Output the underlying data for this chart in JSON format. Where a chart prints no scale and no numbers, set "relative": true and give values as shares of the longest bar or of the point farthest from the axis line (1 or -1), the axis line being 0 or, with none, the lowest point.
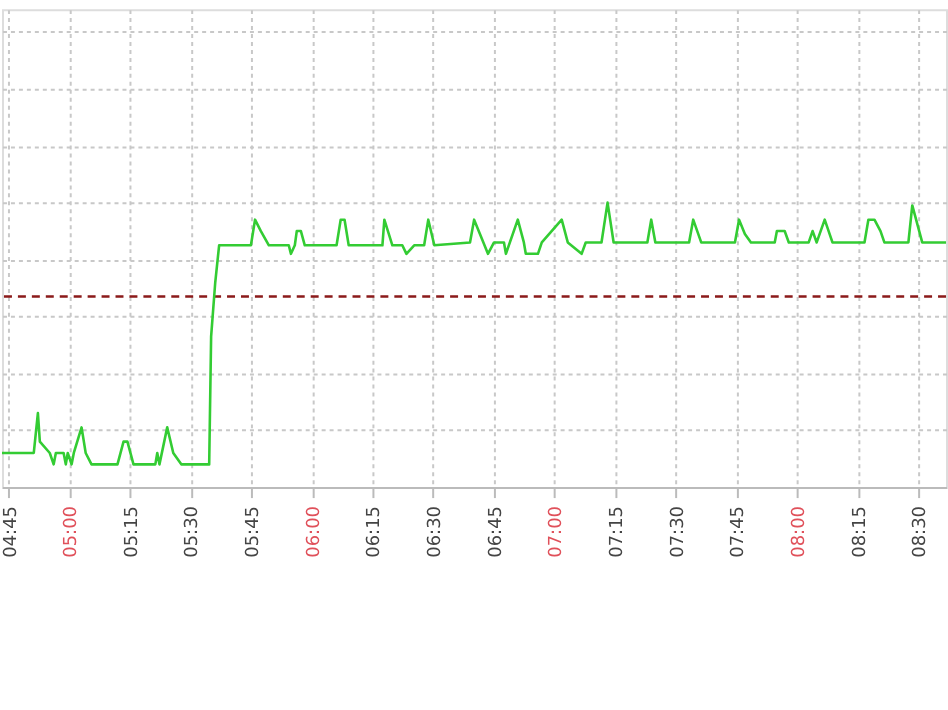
{
  "chart_data": {
    "type": "line",
    "relative": true,
    "grid": true,
    "line_style": "solid",
    "marker": "none",
    "xlim": [
      4.723,
      8.614
    ],
    "xticks": [
      {
        "value": 4.75,
        "label": "04:45"
      },
      {
        "value": 5.0,
        "label": "05:00"
      },
      {
        "value": 5.25,
        "label": "05:15"
      },
      {
        "value": 5.5,
        "label": "05:30"
      },
      {
        "value": 5.75,
        "label": "05:45"
      },
      {
        "value": 6.0,
        "label": "06:00"
      },
      {
        "value": 6.25,
        "label": "06:15"
      },
      {
        "value": 6.5,
        "label": "06:30"
      },
      {
        "value": 6.75,
        "label": "06:45"
      },
      {
        "value": 7.0,
        "label": "07:00"
      },
      {
        "value": 7.25,
        "label": "07:15"
      },
      {
        "value": 7.5,
        "label": "07:30"
      },
      {
        "value": 7.75,
        "label": "07:45"
      },
      {
        "value": 8.0,
        "label": "08:00"
      },
      {
        "value": 8.25,
        "label": "08:15"
      },
      {
        "value": 8.5,
        "label": "08:30"
      }
    ],
    "ref_lines": [
      {
        "axis": "y",
        "value": 0.67,
        "color": "#8b1a1a",
        "line_style": "dashed"
      }
    ],
    "series": [
      {
        "color": "#33cc33",
        "x": [
          4.723,
          4.854,
          4.871,
          4.879,
          4.92,
          4.936,
          4.945,
          4.977,
          4.986,
          4.994,
          5.01,
          5.019,
          5.051,
          5.068,
          5.092,
          5.199,
          5.224,
          5.24,
          5.265,
          5.355,
          5.363,
          5.372,
          5.404,
          5.429,
          5.462,
          5.577,
          5.585,
          5.602,
          5.618,
          5.749,
          5.766,
          5.79,
          5.823,
          5.905,
          5.914,
          5.93,
          5.938,
          5.955,
          5.971,
          6.102,
          6.119,
          6.135,
          6.152,
          6.291,
          6.299,
          6.332,
          6.373,
          6.39,
          6.422,
          6.463,
          6.48,
          6.505,
          6.652,
          6.669,
          6.693,
          6.726,
          6.751,
          6.792,
          6.8,
          6.849,
          6.874,
          6.882,
          6.932,
          6.948,
          7.03,
          7.055,
          7.112,
          7.129,
          7.194,
          7.219,
          7.244,
          7.383,
          7.399,
          7.416,
          7.555,
          7.572,
          7.605,
          7.744,
          7.761,
          7.785,
          7.81,
          7.908,
          7.917,
          7.949,
          7.966,
          8.048,
          8.064,
          8.081,
          8.114,
          8.146,
          8.278,
          8.294,
          8.319,
          8.344,
          8.36,
          8.459,
          8.475,
          8.516,
          8.614
        ],
        "values": [
          0.12,
          0.12,
          0.26,
          0.16,
          0.12,
          0.08,
          0.12,
          0.12,
          0.08,
          0.12,
          0.08,
          0.12,
          0.21,
          0.12,
          0.08,
          0.08,
          0.16,
          0.16,
          0.08,
          0.08,
          0.12,
          0.08,
          0.21,
          0.12,
          0.08,
          0.08,
          0.53,
          0.72,
          0.85,
          0.85,
          0.94,
          0.9,
          0.85,
          0.85,
          0.82,
          0.85,
          0.9,
          0.9,
          0.85,
          0.85,
          0.94,
          0.94,
          0.85,
          0.85,
          0.94,
          0.85,
          0.85,
          0.82,
          0.85,
          0.85,
          0.94,
          0.85,
          0.86,
          0.94,
          0.89,
          0.82,
          0.86,
          0.86,
          0.82,
          0.94,
          0.86,
          0.82,
          0.82,
          0.86,
          0.94,
          0.86,
          0.82,
          0.86,
          0.86,
          1.0,
          0.86,
          0.86,
          0.94,
          0.86,
          0.86,
          0.94,
          0.86,
          0.86,
          0.94,
          0.89,
          0.86,
          0.86,
          0.9,
          0.9,
          0.86,
          0.86,
          0.9,
          0.86,
          0.94,
          0.86,
          0.86,
          0.94,
          0.94,
          0.9,
          0.86,
          0.86,
          0.99,
          0.86,
          0.86
        ]
      }
    ]
  }
}
